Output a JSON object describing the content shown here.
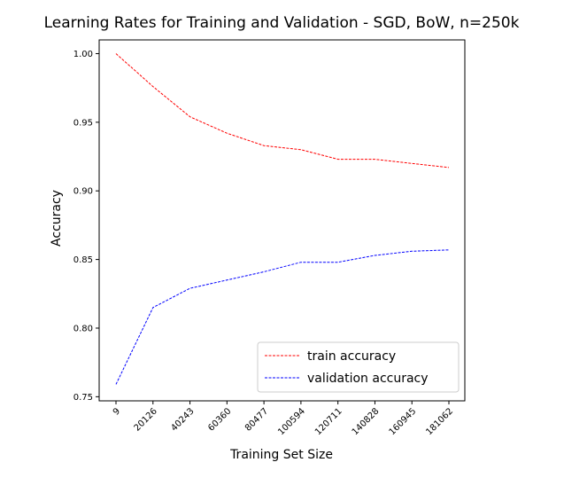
{
  "chart_data": {
    "type": "line",
    "title": "Learning Rates for Training and Validation - SGD, BoW, n=250k",
    "xlabel": "Training Set Size",
    "ylabel": "Accuracy",
    "categories": [
      "9",
      "20126",
      "40243",
      "60360",
      "80477",
      "100594",
      "120711",
      "140828",
      "160945",
      "181062"
    ],
    "ylim": [
      0.747,
      1.01
    ],
    "yticks": [
      "0.75",
      "0.80",
      "0.85",
      "0.90",
      "0.95",
      "1.00"
    ],
    "series": [
      {
        "name": "train accuracy",
        "color": "#ff0000",
        "line_style": "dashed",
        "values": [
          1.0,
          0.976,
          0.954,
          0.942,
          0.933,
          0.93,
          0.923,
          0.923,
          0.92,
          0.917
        ]
      },
      {
        "name": "validation accuracy",
        "color": "#0000ff",
        "line_style": "dashed",
        "values": [
          0.759,
          0.815,
          0.829,
          0.835,
          0.841,
          0.848,
          0.848,
          0.853,
          0.856,
          0.857
        ]
      }
    ],
    "grid": false,
    "legend_position": "lower-right"
  }
}
